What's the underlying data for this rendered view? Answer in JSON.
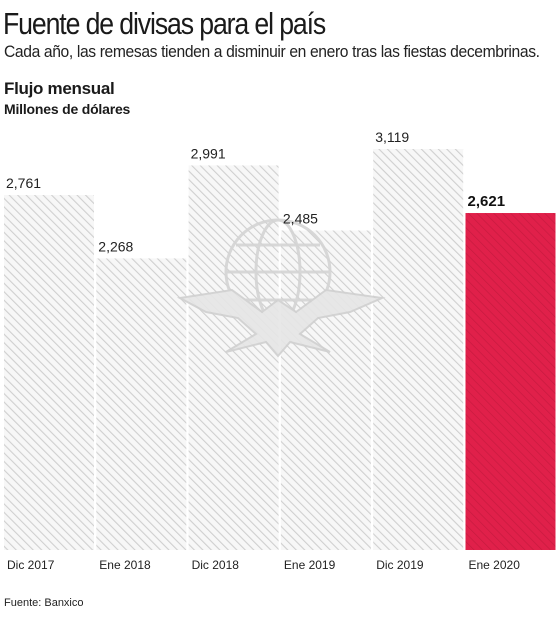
{
  "header": {
    "title": "Fuente de divisas para el país",
    "subtitle": "Cada año, las remesas tienden a disminuir en enero tras las fiestas decembrinas.",
    "section_title": "Flujo mensual",
    "unit": "Millones de dólares"
  },
  "footer": {
    "source": "Fuente: Banxico"
  },
  "colors": {
    "bar_hatch": "#c8c8c8",
    "highlight": "#e0204a",
    "watermark": "#d9d9d9"
  },
  "chart_data": {
    "type": "bar",
    "categories": [
      "Dic 2017",
      "Ene 2018",
      "Dic 2018",
      "Ene 2019",
      "Dic 2019",
      "Ene 2020"
    ],
    "values": [
      2761,
      2268,
      2991,
      2485,
      3119,
      2621
    ],
    "value_labels": [
      "2,761",
      "2,268",
      "2,991",
      "2,485",
      "3,119",
      "2,621"
    ],
    "highlight_index": 5,
    "title": "Flujo mensual",
    "ylabel": "Millones de dólares",
    "ylim": [
      0,
      3119
    ],
    "grid": false,
    "legend": "none"
  }
}
